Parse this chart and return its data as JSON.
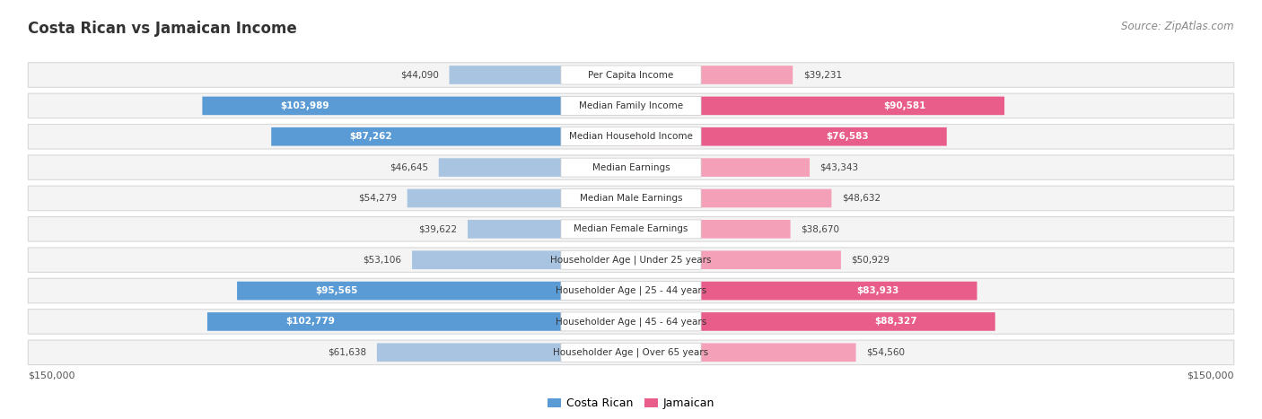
{
  "title": "Costa Rican vs Jamaican Income",
  "source": "Source: ZipAtlas.com",
  "categories": [
    "Per Capita Income",
    "Median Family Income",
    "Median Household Income",
    "Median Earnings",
    "Median Male Earnings",
    "Median Female Earnings",
    "Householder Age | Under 25 years",
    "Householder Age | 25 - 44 years",
    "Householder Age | 45 - 64 years",
    "Householder Age | Over 65 years"
  ],
  "costa_rican": [
    44090,
    103989,
    87262,
    46645,
    54279,
    39622,
    53106,
    95565,
    102779,
    61638
  ],
  "jamaican": [
    39231,
    90581,
    76583,
    43343,
    48632,
    38670,
    50929,
    83933,
    88327,
    54560
  ],
  "max_value": 150000,
  "costa_rican_color_light": "#a8c4e0",
  "costa_rican_color_dark": "#5b9bd5",
  "jamaican_color_light": "#f4a0b8",
  "jamaican_color_dark": "#e85d8a",
  "row_bg": "#f4f4f4",
  "row_border": "#d8d8d8",
  "left_axis_label": "$150,000",
  "right_axis_label": "$150,000",
  "legend_costa_rican": "Costa Rican",
  "legend_jamaican": "Jamaican",
  "highlight_rows": [
    1,
    2,
    7,
    8
  ],
  "title_fontsize": 12,
  "source_fontsize": 8.5,
  "label_fontsize": 7.5,
  "value_fontsize": 7.5
}
